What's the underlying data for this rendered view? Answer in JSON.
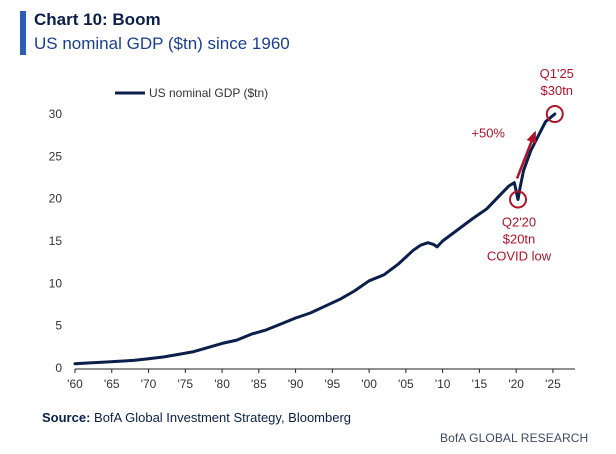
{
  "title": "Chart 10: Boom",
  "subtitle": "US nominal GDP ($tn) since 1960",
  "source_label": "Source:",
  "source_text": "BofA Global Investment Strategy, Bloomberg",
  "footer": "BofA GLOBAL RESEARCH",
  "colors": {
    "line": "#0b1f4b",
    "annotation": "#b0132a",
    "axis": "#222222"
  },
  "chart_data": {
    "type": "line",
    "title": "",
    "xlabel": "",
    "ylabel": "",
    "xlim": [
      1960,
      2028
    ],
    "ylim": [
      0,
      30
    ],
    "grid": false,
    "legend_position": "top-left",
    "x_tick_labels": [
      "'60",
      "'65",
      "'70",
      "'75",
      "'80",
      "'85",
      "'90",
      "'95",
      "'00",
      "'05",
      "'10",
      "'15",
      "'20",
      "'25"
    ],
    "x_tick_values": [
      1960,
      1965,
      1970,
      1975,
      1980,
      1985,
      1990,
      1995,
      2000,
      2005,
      2010,
      2015,
      2020,
      2025
    ],
    "y_tick_values": [
      0,
      5,
      10,
      15,
      20,
      25,
      30
    ],
    "series": [
      {
        "name": "US nominal GDP ($tn)",
        "x": [
          1960,
          1962,
          1964,
          1966,
          1968,
          1970,
          1972,
          1974,
          1976,
          1978,
          1980,
          1982,
          1984,
          1986,
          1988,
          1990,
          1992,
          1994,
          1996,
          1998,
          2000,
          2002,
          2004,
          2006,
          2007,
          2008,
          2008.75,
          2009.25,
          2010,
          2012,
          2014,
          2016,
          2018,
          2019,
          2019.75,
          2020.25,
          2020.5,
          2021,
          2022,
          2023,
          2024,
          2025.25
        ],
        "y": [
          0.5,
          0.6,
          0.7,
          0.8,
          0.9,
          1.1,
          1.3,
          1.6,
          1.9,
          2.4,
          2.9,
          3.3,
          4.0,
          4.5,
          5.2,
          5.9,
          6.5,
          7.3,
          8.1,
          9.1,
          10.3,
          11.0,
          12.3,
          13.9,
          14.5,
          14.8,
          14.6,
          14.3,
          15.0,
          16.3,
          17.6,
          18.8,
          20.6,
          21.5,
          21.9,
          19.9,
          21.2,
          23.3,
          25.7,
          27.4,
          29.1,
          30.0
        ]
      }
    ],
    "annotations": [
      {
        "point": [
          2020.25,
          19.9
        ],
        "lines": [
          "Q2'20",
          "$20tn",
          "COVID low"
        ]
      },
      {
        "point": [
          2025.25,
          30.0
        ],
        "lines": [
          "Q1'25",
          "$30tn"
        ]
      },
      {
        "text": "+50%"
      }
    ]
  }
}
